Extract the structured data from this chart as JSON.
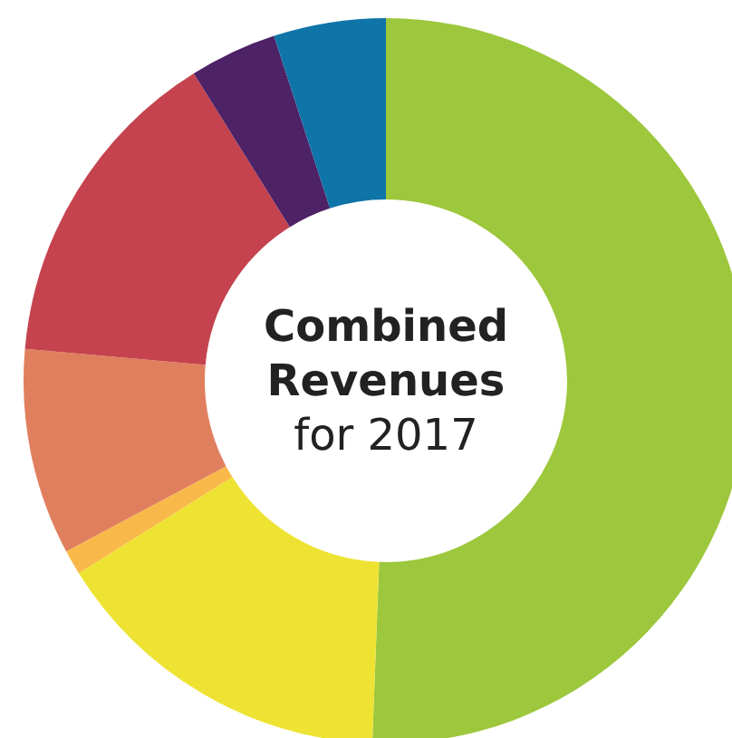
{
  "chart_data": {
    "type": "donut",
    "title": "Combined Revenues",
    "subtitle": "for 2017",
    "categories": [
      null,
      null,
      null,
      null,
      null,
      null,
      null
    ],
    "values": [
      50.6,
      15.5,
      1.1,
      9.2,
      14.7,
      3.9,
      5.0
    ],
    "colors": [
      "#9dc73c",
      "#eee333",
      "#f9b94a",
      "#e07f5e",
      "#c5434e",
      "#4e2266",
      "#0f74a8"
    ],
    "legend": false
  }
}
